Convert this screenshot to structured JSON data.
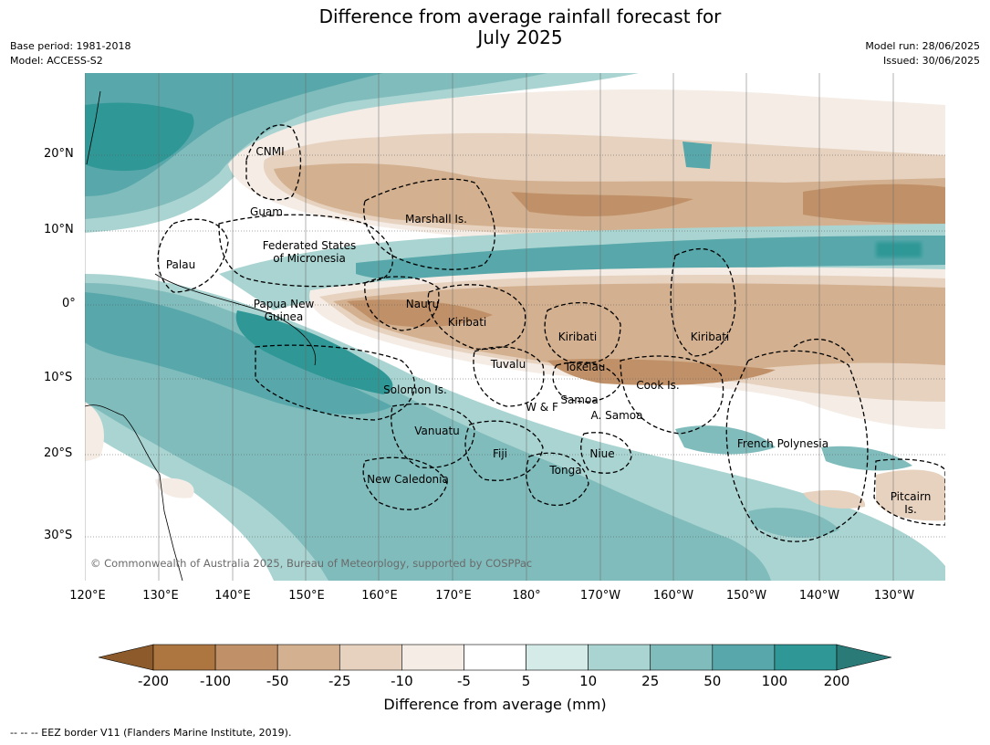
{
  "header": {
    "title_line1": "Difference from average rainfall forecast for",
    "title_line2": "July 2025",
    "base_period": "Base period: 1981-2018",
    "model": "Model: ACCESS-S2",
    "model_run": "Model run: 28/06/2025",
    "issued": "Issued: 30/06/2025"
  },
  "axes": {
    "lat_labels": [
      "20°N",
      "10°N",
      "0°",
      "10°S",
      "20°S",
      "30°S"
    ],
    "lon_labels": [
      "120°E",
      "130°E",
      "140°E",
      "150°E",
      "160°E",
      "170°E",
      "180°",
      "170°W",
      "160°W",
      "150°W",
      "140°W",
      "130°W"
    ]
  },
  "regions": [
    {
      "name": "CNMI"
    },
    {
      "name": "Guam"
    },
    {
      "name": "Marshall Is."
    },
    {
      "name": "Federated States\nof Micronesia"
    },
    {
      "name": "Palau"
    },
    {
      "name": "Papua New\nGuinea"
    },
    {
      "name": "Nauru"
    },
    {
      "name": "Kiribati"
    },
    {
      "name": "Kiribati"
    },
    {
      "name": "Kiribati"
    },
    {
      "name": "Tuvalu"
    },
    {
      "name": "Tokelau"
    },
    {
      "name": "Cook Is."
    },
    {
      "name": "Solomon Is."
    },
    {
      "name": "W & F"
    },
    {
      "name": "Samoa"
    },
    {
      "name": "A. Samoa"
    },
    {
      "name": "Vanuatu"
    },
    {
      "name": "Fiji"
    },
    {
      "name": "Niue"
    },
    {
      "name": "French Polynesia"
    },
    {
      "name": "Tonga"
    },
    {
      "name": "New Caledonia"
    },
    {
      "name": "Pitcairn\nIs."
    }
  ],
  "copyright": "© Commonwealth of Australia 2025, Bureau of Meteorology, supported by COSPPac",
  "colorbar": {
    "title": "Difference from average (mm)",
    "ticks": [
      "-200",
      "-100",
      "-50",
      "-25",
      "-10",
      "-5",
      "5",
      "10",
      "25",
      "50",
      "100",
      "200"
    ],
    "colors": [
      "#8c5a2b",
      "#ad7641",
      "#c09168",
      "#d3b08f",
      "#e6d2bf",
      "#f4ece5",
      "#ffffff",
      "#d4ebe8",
      "#a9d4d1",
      "#80bcbc",
      "#58a8ab",
      "#2f9896",
      "#2a7a78"
    ]
  },
  "footer": "--  --  -- EEZ border V11 (Flanders Marine Institute, 2019)."
}
